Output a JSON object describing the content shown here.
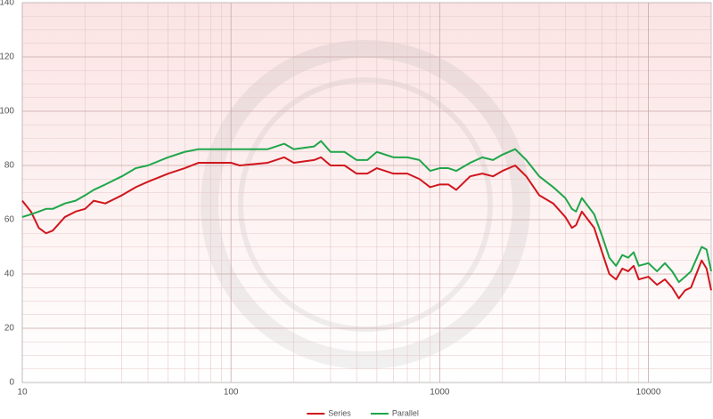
{
  "chart_data": {
    "type": "line",
    "xscale": "log",
    "grid": true,
    "legend": "bottom",
    "xlim": [
      10,
      20000
    ],
    "ylim": [
      0,
      140
    ],
    "xticks": [
      10,
      100,
      1000,
      10000
    ],
    "yticks": [
      0,
      20,
      40,
      60,
      80,
      100,
      120,
      140
    ],
    "x": [
      10,
      11,
      12,
      13,
      14,
      16,
      18,
      20,
      22,
      25,
      30,
      35,
      40,
      50,
      60,
      70,
      80,
      100,
      110,
      150,
      180,
      200,
      250,
      270,
      300,
      350,
      400,
      450,
      500,
      600,
      700,
      800,
      900,
      1000,
      1100,
      1200,
      1400,
      1600,
      1800,
      2000,
      2300,
      2600,
      3000,
      3500,
      4000,
      4300,
      4500,
      4800,
      5500,
      6000,
      6500,
      7000,
      7500,
      8000,
      8500,
      9000,
      10000,
      11000,
      12000,
      13000,
      14000,
      15000,
      16000,
      18000,
      19000,
      20000
    ],
    "series": [
      {
        "name": "Series",
        "color": "#d0161c",
        "values": [
          67,
          63,
          57,
          55,
          56,
          61,
          63,
          64,
          67,
          66,
          69,
          72,
          74,
          77,
          79,
          81,
          81,
          81,
          80,
          81,
          83,
          81,
          82,
          83,
          80,
          80,
          77,
          77,
          79,
          77,
          77,
          75,
          72,
          73,
          73,
          71,
          76,
          77,
          76,
          78,
          80,
          76,
          69,
          66,
          61,
          57,
          58,
          63,
          57,
          48,
          40,
          38,
          42,
          41,
          43,
          38,
          39,
          36,
          38,
          35,
          31,
          34,
          35,
          45,
          42,
          34
        ]
      },
      {
        "name": "Parallel",
        "color": "#1fa64a",
        "values": [
          61,
          62,
          63,
          64,
          64,
          66,
          67,
          69,
          71,
          73,
          76,
          79,
          80,
          83,
          85,
          86,
          86,
          86,
          86,
          86,
          88,
          86,
          87,
          89,
          85,
          85,
          82,
          82,
          85,
          83,
          83,
          82,
          78,
          79,
          79,
          78,
          81,
          83,
          82,
          84,
          86,
          82,
          76,
          72,
          68,
          64,
          63,
          68,
          62,
          54,
          46,
          43,
          47,
          46,
          48,
          43,
          44,
          41,
          44,
          41,
          37,
          39,
          41,
          50,
          49,
          41
        ]
      }
    ]
  }
}
